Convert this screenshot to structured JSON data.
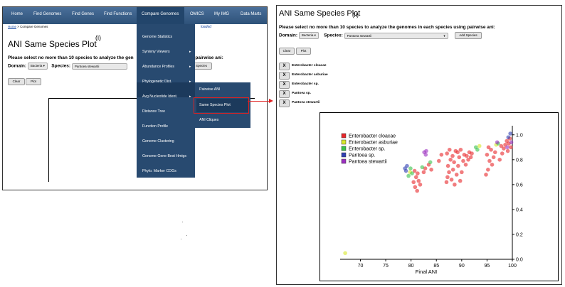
{
  "panel_i": {
    "nav": [
      "Home",
      "Find Genomes",
      "Find Genes",
      "Find Functions",
      "Compare Genomes",
      "OMICS",
      "My IMG",
      "Data Marts"
    ],
    "breadcrumb": {
      "home": "Home",
      "rest": " > Compare Genomes"
    },
    "loaded_text": "loaded",
    "title": "ANI Same Species Plot",
    "panel_label": "(i)",
    "instruction_start": "Please select no more than 10 species to analyze the gen",
    "instruction_end": "ng pairwise ani:",
    "domain_label": "Domain:",
    "domain_value": "Bacteria",
    "species_label": "Species:",
    "species_value": "Pantoea stewartii",
    "add_species_partial": "Species",
    "clear_label": "Clear",
    "plot_label": "Plot",
    "menu": [
      {
        "label": "Genome Statistics",
        "arrow": ""
      },
      {
        "label": "Synteny Viewers",
        "arrow": "▸"
      },
      {
        "label": "Abundance Profiles",
        "arrow": "▸"
      },
      {
        "label": "Phylogenetic Dist.",
        "arrow": "▸"
      },
      {
        "label": "Avg Nucleotide Ident.",
        "arrow": "▸"
      },
      {
        "label": "Distance Tree",
        "arrow": ""
      },
      {
        "label": "Function Profile",
        "arrow": ""
      },
      {
        "label": "Genome Clustering",
        "arrow": ""
      },
      {
        "label": "Genome Gene Best Hmigs",
        "arrow": ""
      },
      {
        "label": "Phylo. Marker COGs",
        "arrow": ""
      }
    ],
    "submenu": [
      "Pairwise ANI",
      "Same Species Plot",
      "ANI Cliques"
    ]
  },
  "panel_ii": {
    "title": "ANI Same Species Plot",
    "panel_label": "(ii)",
    "instruction": "Please select no more than 10 species to analyze the genomes in each species using pairwise ani:",
    "domain_label": "Domain:",
    "domain_value": "Bacteria",
    "species_label": "Species:",
    "species_value": "Pantoea stewartii",
    "add_species_label": "Add Species",
    "clear_label": "Clear",
    "plot_label": "Plot",
    "remove_label": "X",
    "selected_species": [
      "Enterobacter cloacae",
      "Enterobacter asburiae",
      "Enterobacter sp.",
      "Pantoea sp.",
      "Pantoea stewartii"
    ]
  },
  "chart_data": {
    "type": "scatter",
    "title": "",
    "xlabel": "Final ANI",
    "ylabel": "",
    "xlim": [
      66,
      100
    ],
    "ylim": [
      0,
      1.05
    ],
    "x_ticks": [
      70,
      75,
      80,
      85,
      90,
      95,
      100
    ],
    "y_ticks": [
      0.0,
      0.2,
      0.4,
      0.6,
      0.8,
      1.0
    ],
    "grid": false,
    "legend_position": "top-left",
    "series": [
      {
        "name": "Enterobacter cloacae",
        "color": "#e8262a",
        "points": [
          [
            80.5,
            0.62
          ],
          [
            80.8,
            0.58
          ],
          [
            81.0,
            0.66
          ],
          [
            81.2,
            0.55
          ],
          [
            81.5,
            0.63
          ],
          [
            81.3,
            0.69
          ],
          [
            80.7,
            0.71
          ],
          [
            81.8,
            0.6
          ],
          [
            82.5,
            0.7
          ],
          [
            82.8,
            0.73
          ],
          [
            83.5,
            0.76
          ],
          [
            84.0,
            0.72
          ],
          [
            85.5,
            0.79
          ],
          [
            86.0,
            0.84
          ],
          [
            87.0,
            0.62
          ],
          [
            87.2,
            0.66
          ],
          [
            87.5,
            0.7
          ],
          [
            87.3,
            0.75
          ],
          [
            87.8,
            0.8
          ],
          [
            87.1,
            0.85
          ],
          [
            87.6,
            0.88
          ],
          [
            88.0,
            0.64
          ],
          [
            88.3,
            0.72
          ],
          [
            88.5,
            0.78
          ],
          [
            88.2,
            0.83
          ],
          [
            88.8,
            0.87
          ],
          [
            89.0,
            0.68
          ],
          [
            89.3,
            0.75
          ],
          [
            89.5,
            0.82
          ],
          [
            89.2,
            0.86
          ],
          [
            89.8,
            0.88
          ],
          [
            90.0,
            0.7
          ],
          [
            90.3,
            0.79
          ],
          [
            90.5,
            0.84
          ],
          [
            90.8,
            0.76
          ],
          [
            91.0,
            0.83
          ],
          [
            91.3,
            0.8
          ],
          [
            91.5,
            0.86
          ],
          [
            91.8,
            0.82
          ],
          [
            92.0,
            0.85
          ],
          [
            88.6,
            0.6
          ],
          [
            89.7,
            0.63
          ],
          [
            94.8,
            0.68
          ],
          [
            95.2,
            0.72
          ],
          [
            95.5,
            0.79
          ],
          [
            95.0,
            0.84
          ],
          [
            95.8,
            0.88
          ],
          [
            96.0,
            0.76
          ],
          [
            96.3,
            0.82
          ],
          [
            96.6,
            0.86
          ],
          [
            95.3,
            0.9
          ],
          [
            97.5,
            0.8
          ],
          [
            98.0,
            0.85
          ],
          [
            98.3,
            0.89
          ],
          [
            98.6,
            0.92
          ],
          [
            98.9,
            0.95
          ],
          [
            99.1,
            0.87
          ],
          [
            99.3,
            0.93
          ],
          [
            99.5,
            0.97
          ],
          [
            99.7,
            0.9
          ],
          [
            97.8,
            0.91
          ]
        ]
      },
      {
        "name": "Enterobacter asburiae",
        "color": "#d7e82a",
        "points": [
          [
            67.0,
            0.05
          ],
          [
            79.8,
            0.7
          ],
          [
            93.5,
            0.91
          ],
          [
            96.8,
            0.92
          ]
        ]
      },
      {
        "name": "Enterobacter sp.",
        "color": "#38c24a",
        "points": [
          [
            79.5,
            0.67
          ],
          [
            80.2,
            0.69
          ],
          [
            79.9,
            0.73
          ],
          [
            82.2,
            0.74
          ],
          [
            83.8,
            0.78
          ],
          [
            92.8,
            0.9
          ],
          [
            97.2,
            0.93
          ],
          [
            93.1,
            0.88
          ]
        ]
      },
      {
        "name": "Pantoea sp.",
        "color": "#2f3fb3",
        "points": [
          [
            78.8,
            0.73
          ],
          [
            79.2,
            0.75
          ],
          [
            79.0,
            0.71
          ],
          [
            99.6,
            1.01
          ],
          [
            99.2,
            0.98
          ]
        ]
      },
      {
        "name": "Pantoea stewartii",
        "color": "#9b2fbf",
        "points": [
          [
            82.6,
            0.86
          ],
          [
            83.0,
            0.87
          ],
          [
            82.9,
            0.84
          ],
          [
            99.0,
            0.9
          ],
          [
            99.8,
            0.94
          ],
          [
            97.0,
            0.94
          ]
        ]
      }
    ]
  }
}
